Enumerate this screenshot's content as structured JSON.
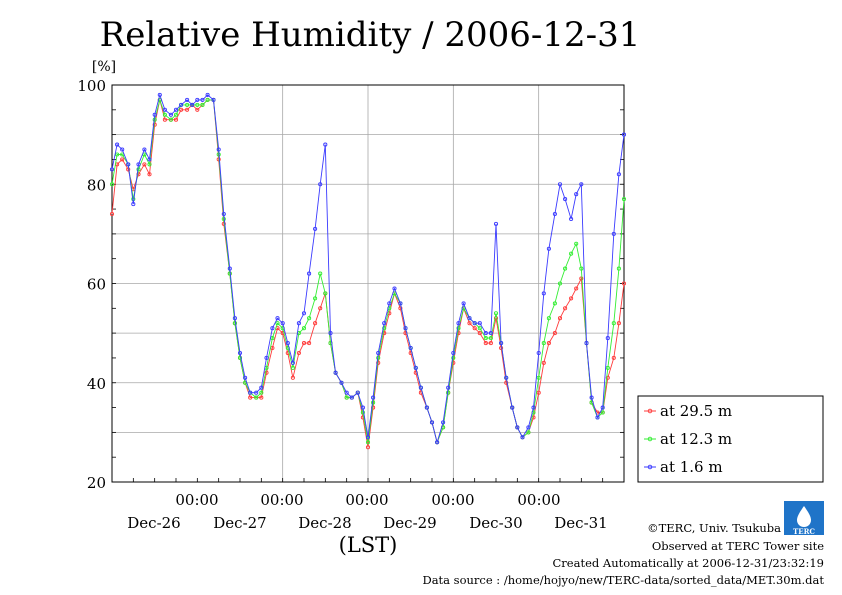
{
  "chart_data": {
    "type": "line",
    "title": "Relative Humidity / 2006-12-31",
    "ylabel": "[%]",
    "xlabel": "(LST)",
    "ylim": [
      20,
      100
    ],
    "yticks": [
      20,
      40,
      60,
      80,
      100
    ],
    "xlim": [
      0,
      6
    ],
    "x_unit": "days from 2006-12-25 00:00 LST",
    "x_ticks": [
      {
        "top": "00:00",
        "bottom": "Dec-27",
        "x": 2
      },
      {
        "top": "00:00",
        "bottom": "Dec-28",
        "x": 3
      },
      {
        "top": "00:00",
        "bottom": "Dec-29",
        "x": 4
      },
      {
        "top": "00:00",
        "bottom": "Dec-30",
        "x": 5
      },
      {
        "top": "00:00",
        "bottom": "Dec-31",
        "x": 6
      }
    ],
    "x_extra_labels": [
      "Dec-26"
    ],
    "grid": true,
    "legend_position": "right",
    "series": [
      {
        "name": "at 29.5 m",
        "color": "#ff3b3b",
        "points": [
          [
            0.0,
            74
          ],
          [
            0.06,
            84
          ],
          [
            0.12,
            85
          ],
          [
            0.19,
            83
          ],
          [
            0.25,
            79
          ],
          [
            0.31,
            82
          ],
          [
            0.38,
            84
          ],
          [
            0.44,
            82
          ],
          [
            0.5,
            92
          ],
          [
            0.56,
            97
          ],
          [
            0.62,
            93
          ],
          [
            0.69,
            93
          ],
          [
            0.75,
            93
          ],
          [
            0.81,
            95
          ],
          [
            0.88,
            95
          ],
          [
            0.94,
            96
          ],
          [
            1.0,
            95
          ],
          [
            1.06,
            96
          ],
          [
            1.12,
            97
          ],
          [
            1.19,
            97
          ],
          [
            1.25,
            85
          ],
          [
            1.31,
            72
          ],
          [
            1.38,
            62
          ],
          [
            1.44,
            52
          ],
          [
            1.5,
            45
          ],
          [
            1.56,
            40
          ],
          [
            1.62,
            37
          ],
          [
            1.69,
            37
          ],
          [
            1.75,
            37
          ],
          [
            1.81,
            42
          ],
          [
            1.88,
            47
          ],
          [
            1.94,
            51
          ],
          [
            2.0,
            50
          ],
          [
            2.06,
            46
          ],
          [
            2.12,
            41
          ],
          [
            2.19,
            46
          ],
          [
            2.25,
            48
          ],
          [
            2.31,
            48
          ],
          [
            2.38,
            52
          ],
          [
            2.44,
            55
          ],
          [
            2.5,
            58
          ],
          [
            2.56,
            48
          ],
          [
            2.62,
            42
          ],
          [
            2.69,
            40
          ],
          [
            2.75,
            37
          ],
          [
            2.81,
            37
          ],
          [
            2.88,
            38
          ],
          [
            2.94,
            33
          ],
          [
            3.0,
            27
          ],
          [
            3.06,
            35
          ],
          [
            3.12,
            44
          ],
          [
            3.19,
            50
          ],
          [
            3.25,
            54
          ],
          [
            3.31,
            58
          ],
          [
            3.38,
            55
          ],
          [
            3.44,
            50
          ],
          [
            3.5,
            46
          ],
          [
            3.56,
            42
          ],
          [
            3.62,
            38
          ],
          [
            3.69,
            35
          ],
          [
            3.75,
            32
          ],
          [
            3.81,
            28
          ],
          [
            3.88,
            31
          ],
          [
            3.94,
            38
          ],
          [
            4.0,
            44
          ],
          [
            4.06,
            50
          ],
          [
            4.12,
            55
          ],
          [
            4.19,
            52
          ],
          [
            4.25,
            51
          ],
          [
            4.31,
            50
          ],
          [
            4.38,
            48
          ],
          [
            4.44,
            48
          ],
          [
            4.5,
            53
          ],
          [
            4.56,
            47
          ],
          [
            4.62,
            40
          ],
          [
            4.69,
            35
          ],
          [
            4.75,
            31
          ],
          [
            4.81,
            29
          ],
          [
            4.88,
            30
          ],
          [
            4.94,
            33
          ],
          [
            5.0,
            38
          ],
          [
            5.06,
            44
          ],
          [
            5.12,
            48
          ],
          [
            5.19,
            50
          ],
          [
            5.25,
            53
          ],
          [
            5.31,
            55
          ],
          [
            5.38,
            57
          ],
          [
            5.44,
            59
          ],
          [
            5.5,
            61
          ],
          [
            5.56,
            48
          ],
          [
            5.62,
            36
          ],
          [
            5.69,
            34
          ],
          [
            5.75,
            34
          ],
          [
            5.81,
            41
          ],
          [
            5.88,
            45
          ],
          [
            5.94,
            52
          ],
          [
            6.0,
            60
          ]
        ]
      },
      {
        "name": "at 12.3 m",
        "color": "#33ee33",
        "points": [
          [
            0.0,
            80
          ],
          [
            0.06,
            86
          ],
          [
            0.12,
            86
          ],
          [
            0.19,
            84
          ],
          [
            0.25,
            77
          ],
          [
            0.31,
            83
          ],
          [
            0.38,
            86
          ],
          [
            0.44,
            84
          ],
          [
            0.5,
            93
          ],
          [
            0.56,
            97
          ],
          [
            0.62,
            94
          ],
          [
            0.69,
            93
          ],
          [
            0.75,
            94
          ],
          [
            0.81,
            96
          ],
          [
            0.88,
            96
          ],
          [
            0.94,
            96
          ],
          [
            1.0,
            96
          ],
          [
            1.06,
            96
          ],
          [
            1.12,
            97
          ],
          [
            1.19,
            97
          ],
          [
            1.25,
            86
          ],
          [
            1.31,
            73
          ],
          [
            1.38,
            62
          ],
          [
            1.44,
            52
          ],
          [
            1.5,
            45
          ],
          [
            1.56,
            40
          ],
          [
            1.62,
            38
          ],
          [
            1.69,
            37
          ],
          [
            1.75,
            38
          ],
          [
            1.81,
            43
          ],
          [
            1.88,
            49
          ],
          [
            1.94,
            52
          ],
          [
            2.0,
            51
          ],
          [
            2.06,
            47
          ],
          [
            2.12,
            43
          ],
          [
            2.19,
            50
          ],
          [
            2.25,
            51
          ],
          [
            2.31,
            53
          ],
          [
            2.38,
            57
          ],
          [
            2.44,
            62
          ],
          [
            2.5,
            58
          ],
          [
            2.56,
            48
          ],
          [
            2.62,
            42
          ],
          [
            2.69,
            40
          ],
          [
            2.75,
            37
          ],
          [
            2.81,
            37
          ],
          [
            2.88,
            38
          ],
          [
            2.94,
            34
          ],
          [
            3.0,
            28
          ],
          [
            3.06,
            36
          ],
          [
            3.12,
            45
          ],
          [
            3.19,
            51
          ],
          [
            3.25,
            55
          ],
          [
            3.31,
            58
          ],
          [
            3.38,
            56
          ],
          [
            3.44,
            51
          ],
          [
            3.5,
            47
          ],
          [
            3.56,
            43
          ],
          [
            3.62,
            39
          ],
          [
            3.69,
            35
          ],
          [
            3.75,
            32
          ],
          [
            3.81,
            28
          ],
          [
            3.88,
            31
          ],
          [
            3.94,
            38
          ],
          [
            4.0,
            45
          ],
          [
            4.06,
            51
          ],
          [
            4.12,
            55
          ],
          [
            4.19,
            53
          ],
          [
            4.25,
            52
          ],
          [
            4.31,
            51
          ],
          [
            4.38,
            49
          ],
          [
            4.44,
            49
          ],
          [
            4.5,
            54
          ],
          [
            4.56,
            48
          ],
          [
            4.62,
            41
          ],
          [
            4.69,
            35
          ],
          [
            4.75,
            31
          ],
          [
            4.81,
            29
          ],
          [
            4.88,
            30
          ],
          [
            4.94,
            34
          ],
          [
            5.0,
            41
          ],
          [
            5.06,
            48
          ],
          [
            5.12,
            53
          ],
          [
            5.19,
            56
          ],
          [
            5.25,
            60
          ],
          [
            5.31,
            63
          ],
          [
            5.38,
            66
          ],
          [
            5.44,
            68
          ],
          [
            5.5,
            63
          ],
          [
            5.56,
            48
          ],
          [
            5.62,
            36
          ],
          [
            5.69,
            33
          ],
          [
            5.75,
            34
          ],
          [
            5.81,
            43
          ],
          [
            5.88,
            52
          ],
          [
            5.94,
            63
          ],
          [
            6.0,
            77
          ]
        ]
      },
      {
        "name": "at 1.6 m",
        "color": "#3b3bff",
        "points": [
          [
            0.0,
            83
          ],
          [
            0.06,
            88
          ],
          [
            0.12,
            87
          ],
          [
            0.19,
            84
          ],
          [
            0.25,
            76
          ],
          [
            0.31,
            84
          ],
          [
            0.38,
            87
          ],
          [
            0.44,
            85
          ],
          [
            0.5,
            94
          ],
          [
            0.56,
            98
          ],
          [
            0.62,
            95
          ],
          [
            0.69,
            94
          ],
          [
            0.75,
            95
          ],
          [
            0.81,
            96
          ],
          [
            0.88,
            97
          ],
          [
            0.94,
            96
          ],
          [
            1.0,
            97
          ],
          [
            1.06,
            97
          ],
          [
            1.12,
            98
          ],
          [
            1.19,
            97
          ],
          [
            1.25,
            87
          ],
          [
            1.31,
            74
          ],
          [
            1.38,
            63
          ],
          [
            1.44,
            53
          ],
          [
            1.5,
            46
          ],
          [
            1.56,
            41
          ],
          [
            1.62,
            38
          ],
          [
            1.69,
            38
          ],
          [
            1.75,
            39
          ],
          [
            1.81,
            45
          ],
          [
            1.88,
            51
          ],
          [
            1.94,
            53
          ],
          [
            2.0,
            52
          ],
          [
            2.06,
            48
          ],
          [
            2.12,
            44
          ],
          [
            2.19,
            52
          ],
          [
            2.25,
            54
          ],
          [
            2.31,
            62
          ],
          [
            2.38,
            71
          ],
          [
            2.44,
            80
          ],
          [
            2.5,
            88
          ],
          [
            2.56,
            50
          ],
          [
            2.62,
            42
          ],
          [
            2.69,
            40
          ],
          [
            2.75,
            38
          ],
          [
            2.81,
            37
          ],
          [
            2.88,
            38
          ],
          [
            2.94,
            35
          ],
          [
            3.0,
            29
          ],
          [
            3.06,
            37
          ],
          [
            3.12,
            46
          ],
          [
            3.19,
            52
          ],
          [
            3.25,
            56
          ],
          [
            3.31,
            59
          ],
          [
            3.38,
            56
          ],
          [
            3.44,
            51
          ],
          [
            3.5,
            47
          ],
          [
            3.56,
            43
          ],
          [
            3.62,
            39
          ],
          [
            3.69,
            35
          ],
          [
            3.75,
            32
          ],
          [
            3.81,
            28
          ],
          [
            3.88,
            32
          ],
          [
            3.94,
            39
          ],
          [
            4.0,
            46
          ],
          [
            4.06,
            52
          ],
          [
            4.12,
            56
          ],
          [
            4.19,
            53
          ],
          [
            4.25,
            52
          ],
          [
            4.31,
            52
          ],
          [
            4.38,
            50
          ],
          [
            4.44,
            50
          ],
          [
            4.5,
            72
          ],
          [
            4.56,
            48
          ],
          [
            4.62,
            41
          ],
          [
            4.69,
            35
          ],
          [
            4.75,
            31
          ],
          [
            4.81,
            29
          ],
          [
            4.88,
            31
          ],
          [
            4.94,
            35
          ],
          [
            5.0,
            46
          ],
          [
            5.06,
            58
          ],
          [
            5.12,
            67
          ],
          [
            5.19,
            74
          ],
          [
            5.25,
            80
          ],
          [
            5.31,
            77
          ],
          [
            5.38,
            73
          ],
          [
            5.44,
            78
          ],
          [
            5.5,
            80
          ],
          [
            5.56,
            48
          ],
          [
            5.62,
            37
          ],
          [
            5.69,
            33
          ],
          [
            5.75,
            35
          ],
          [
            5.81,
            49
          ],
          [
            5.88,
            70
          ],
          [
            5.94,
            82
          ],
          [
            6.0,
            90
          ]
        ]
      }
    ]
  },
  "credits": {
    "copyright": "©TERC, Univ. Tsukuba",
    "observed": "Observed at TERC Tower site",
    "created": "Created Automatically at 2006-12-31/23:32:19",
    "source": "Data source : /home/hojyo/new/TERC-data/sorted_data/MET.30m.dat"
  },
  "logo": {
    "text": "TERC",
    "color": "#1f74c8"
  }
}
